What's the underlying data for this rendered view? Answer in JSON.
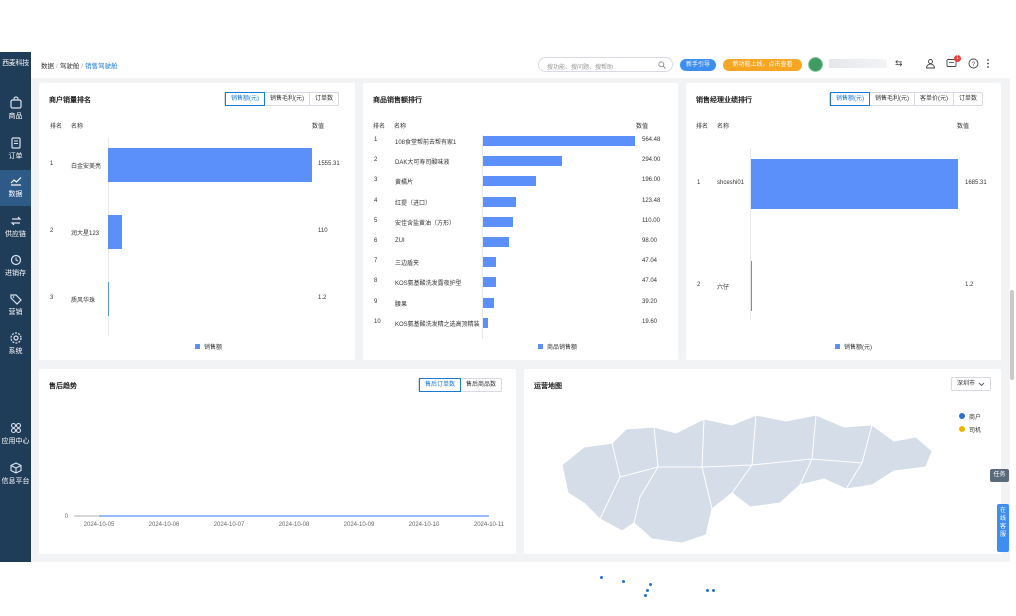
{
  "sidebar": {
    "brand": "西麦科技",
    "items": [
      {
        "label": "商品",
        "icon": "bag-icon"
      },
      {
        "label": "订单",
        "icon": "order-icon"
      },
      {
        "label": "数据",
        "icon": "chart-icon"
      },
      {
        "label": "供应链",
        "icon": "supply-icon"
      },
      {
        "label": "进销存",
        "icon": "inventory-icon"
      },
      {
        "label": "营销",
        "icon": "tag-icon"
      },
      {
        "label": "系统",
        "icon": "gear-icon"
      },
      {
        "label": "应用中心",
        "icon": "apps-icon"
      },
      {
        "label": "信息平台",
        "icon": "cube-icon"
      }
    ]
  },
  "topbar": {
    "breadcrumb": [
      "数据",
      "驾驶舱",
      "销售驾驶舱"
    ],
    "search_placeholder": "搜功能、搜问题、搜帮助",
    "guide": "新手引导",
    "new_feature": "新功能上线，点击查看",
    "badge": "1"
  },
  "cards": {
    "merchant": {
      "title": "商户销量排名",
      "tabs": [
        "销售额(元)",
        "销售毛利(元)",
        "订单数"
      ],
      "headers": [
        "排名",
        "名称",
        "数值"
      ],
      "legend": "销售额"
    },
    "product": {
      "title": "商品销售额排行",
      "headers": [
        "排名",
        "名称",
        "数值"
      ],
      "legend": "商品销售额"
    },
    "manager": {
      "title": "销售经理业绩排行",
      "tabs": [
        "销售额(元)",
        "销售毛利(元)",
        "客单价(元)",
        "订单数"
      ],
      "headers": [
        "排名",
        "名称",
        "数值"
      ],
      "legend": "销售额(元)"
    },
    "aftersale": {
      "title": "售后趋势",
      "tabs": [
        "售后订单数",
        "售后商品数"
      ]
    },
    "map": {
      "title": "运营地图",
      "city": "深圳市",
      "legend": [
        {
          "label": "商户",
          "color": "#2a6fd6"
        },
        {
          "label": "司机",
          "color": "#f0b400"
        }
      ]
    }
  },
  "chart_data": [
    {
      "type": "bar",
      "title": "商户销量排名",
      "categories": [
        "白金安美亮",
        "润大星123",
        "质风华珠"
      ],
      "ranks": [
        "1",
        "2",
        "3"
      ],
      "values": [
        1555.31,
        110,
        1.2
      ],
      "labels": [
        "1555.31",
        "110",
        "1.2"
      ]
    },
    {
      "type": "bar",
      "title": "商品销售额排行",
      "categories": [
        "108食堂帮前去帮有家1",
        "DAK大可寿司酸味液",
        "黄橘片",
        "红提（进口）",
        "安佳含盐黄油（方形）",
        "ZUI",
        "三边盾夹",
        "KOS氨基酸洗发露夜护型",
        "腰果",
        "KOS氨基酸洗发精之选高顶精装"
      ],
      "ranks": [
        "1",
        "2",
        "3",
        "4",
        "5",
        "6",
        "7",
        "8",
        "9",
        "10"
      ],
      "values": [
        564.48,
        294.0,
        196.0,
        123.48,
        110.0,
        98.0,
        47.04,
        47.04,
        39.2,
        19.6
      ],
      "labels": [
        "564.48",
        "294.00",
        "196.00",
        "123.48",
        "110.00",
        "98.00",
        "47.04",
        "47.04",
        "39.20",
        "19.60"
      ]
    },
    {
      "type": "bar",
      "title": "销售经理业绩排行",
      "categories": [
        "shceshi01",
        "六仔"
      ],
      "ranks": [
        "1",
        "2"
      ],
      "values": [
        1685.31,
        1.2
      ],
      "labels": [
        "1685.31",
        "1.2"
      ]
    },
    {
      "type": "line",
      "title": "售后趋势",
      "x": [
        "2024-10-05",
        "2024-10-06",
        "2024-10-07",
        "2024-10-08",
        "2024-10-09",
        "2024-10-10",
        "2024-10-11"
      ],
      "values": [
        0,
        0,
        0,
        0,
        0,
        0,
        0
      ],
      "yticks": [
        "0"
      ]
    }
  ],
  "floats": {
    "task": "任务",
    "service": "在线客服"
  }
}
